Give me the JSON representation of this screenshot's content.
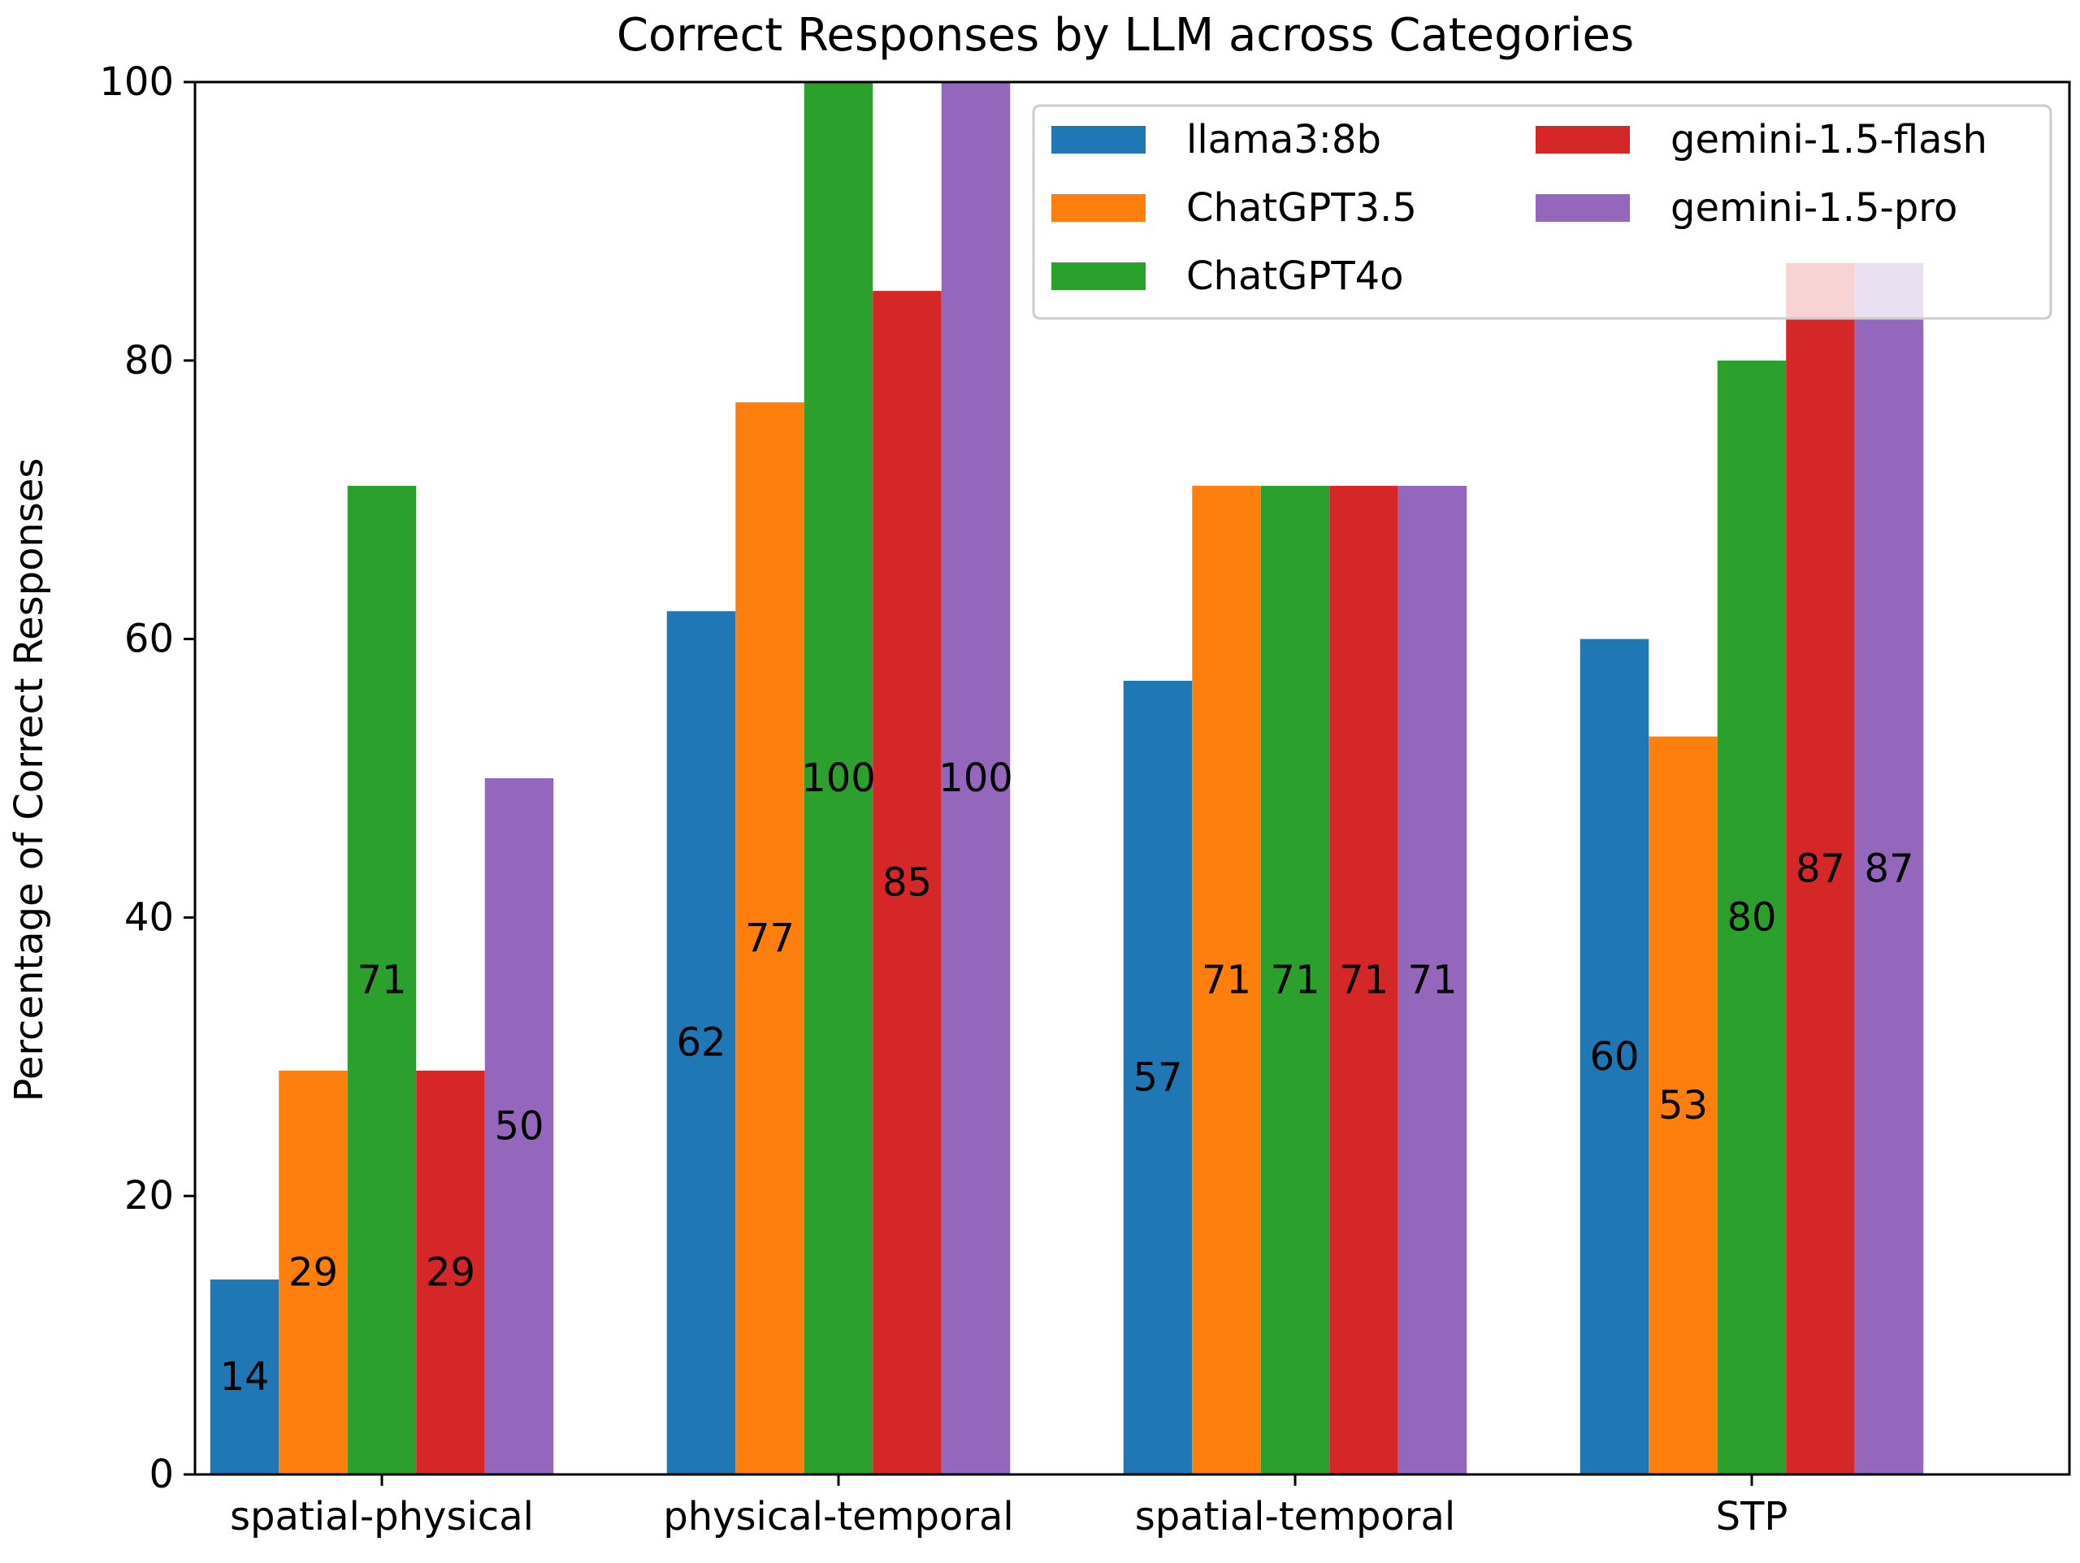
{
  "chart_data": {
    "type": "bar",
    "title": "Correct Responses by LLM across Categories",
    "xlabel": "",
    "ylabel": "Percentage of Correct Responses",
    "ylim": [
      0,
      100
    ],
    "yticks": [
      0,
      20,
      40,
      60,
      80,
      100
    ],
    "grid": false,
    "legend_position": "top-right",
    "categories": [
      "spatial-physical",
      "physical-temporal",
      "spatial-temporal",
      "STP"
    ],
    "series": [
      {
        "name": "llama3:8b",
        "color": "#1f77b4",
        "values": [
          14,
          62,
          57,
          60
        ]
      },
      {
        "name": "ChatGPT3.5",
        "color": "#ff7f0e",
        "values": [
          29,
          77,
          71,
          53
        ]
      },
      {
        "name": "ChatGPT4o",
        "color": "#2ca02c",
        "values": [
          71,
          100,
          71,
          80
        ]
      },
      {
        "name": "gemini-1.5-flash",
        "color": "#d62728",
        "values": [
          29,
          85,
          71,
          87
        ]
      },
      {
        "name": "gemini-1.5-pro",
        "color": "#9467bd",
        "values": [
          50,
          100,
          71,
          87
        ]
      }
    ]
  }
}
